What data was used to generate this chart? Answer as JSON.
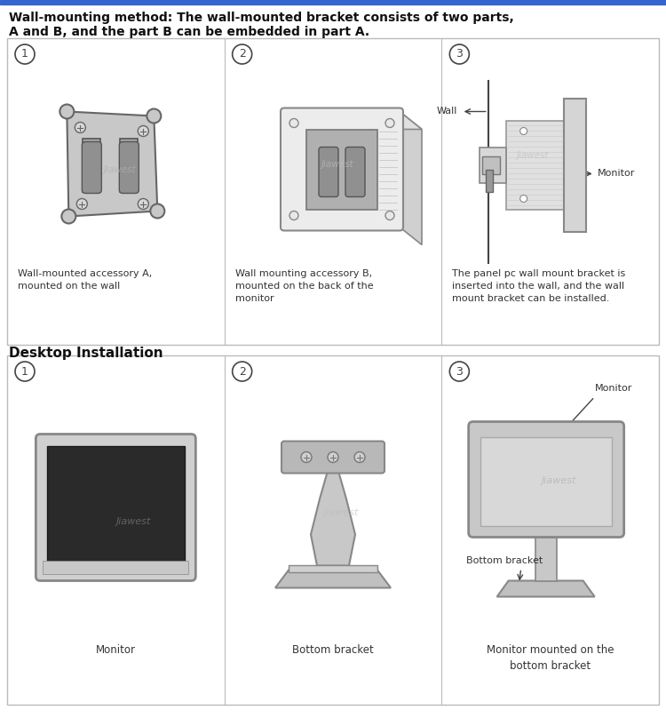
{
  "title_line1": "Wall-mounting method: The wall-mounted bracket consists of two parts,",
  "title_line2": "A and B, and the part B can be embedded in part A.",
  "section2_title": "Desktop Installation",
  "top_border_color": "#3366CC",
  "border_color": "#bbbbbb",
  "bg_color": "#ffffff",
  "text_color": "#333333",
  "caption1_1": "Wall-mounted accessory A,\nmounted on the wall",
  "caption1_2": "Wall mounting accessory B,\nmounted on the back of the\nmonitor",
  "caption1_3": "The panel pc wall mount bracket is\ninserted into the wall, and the wall\nmount bracket can be installed.",
  "caption2_1": "Monitor",
  "caption2_2": "Bottom bracket",
  "caption2_3": "Monitor mounted on the\nbottom bracket",
  "watermark": "Jiawest",
  "label_monitor": "Monitor",
  "label_wall": "Wall",
  "label_bottom_bracket": "Bottom bracket"
}
